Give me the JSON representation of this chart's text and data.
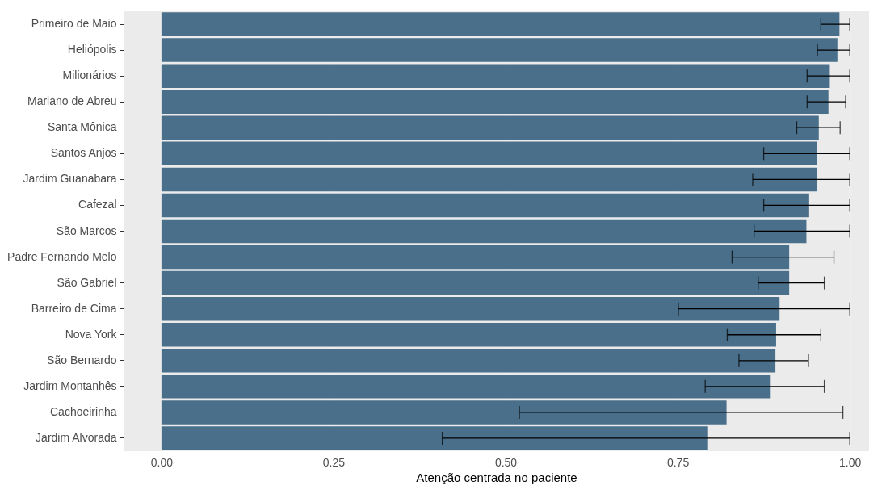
{
  "chart_data": {
    "type": "bar",
    "orientation": "horizontal",
    "xlabel": "Atenção centrada no paciente",
    "categories": [
      "Primeiro de Maio",
      "Heliópolis",
      "Milionários",
      "Mariano de Abreu",
      "Santa Mônica",
      "Santos Anjos",
      "Jardim Guanabara",
      "Cafezal",
      "São Marcos",
      "Padre Fernando Melo",
      "São Gabriel",
      "Barreiro de Cima",
      "Nova York",
      "São Bernardo",
      "Jardim Montanhês",
      "Cachoeirinha",
      "Jardim Alvorada"
    ],
    "values": [
      0.985,
      0.982,
      0.971,
      0.969,
      0.955,
      0.952,
      0.952,
      0.941,
      0.937,
      0.912,
      0.912,
      0.898,
      0.893,
      0.892,
      0.884,
      0.821,
      0.793
    ],
    "errors": [
      [
        0.958,
        1.0
      ],
      [
        0.953,
        1.0
      ],
      [
        0.938,
        1.0
      ],
      [
        0.938,
        0.994
      ],
      [
        0.923,
        0.986
      ],
      [
        0.875,
        1.0
      ],
      [
        0.859,
        1.0
      ],
      [
        0.875,
        1.0
      ],
      [
        0.861,
        1.0
      ],
      [
        0.829,
        0.977
      ],
      [
        0.867,
        0.963
      ],
      [
        0.751,
        1.0
      ],
      [
        0.822,
        0.958
      ],
      [
        0.839,
        0.94
      ],
      [
        0.79,
        0.963
      ],
      [
        0.52,
        0.99
      ],
      [
        0.408,
        1.0
      ]
    ],
    "color": "#4a6f8a",
    "xlim": [
      -0.055,
      1.028
    ],
    "xticks": [
      {
        "value": 0,
        "label": "0.00"
      },
      {
        "value": 0.25,
        "label": "0.25"
      },
      {
        "value": 0.5,
        "label": "0.50"
      },
      {
        "value": 0.75,
        "label": "0.75"
      },
      {
        "value": 1,
        "label": "1.00"
      }
    ],
    "grid": "x"
  }
}
